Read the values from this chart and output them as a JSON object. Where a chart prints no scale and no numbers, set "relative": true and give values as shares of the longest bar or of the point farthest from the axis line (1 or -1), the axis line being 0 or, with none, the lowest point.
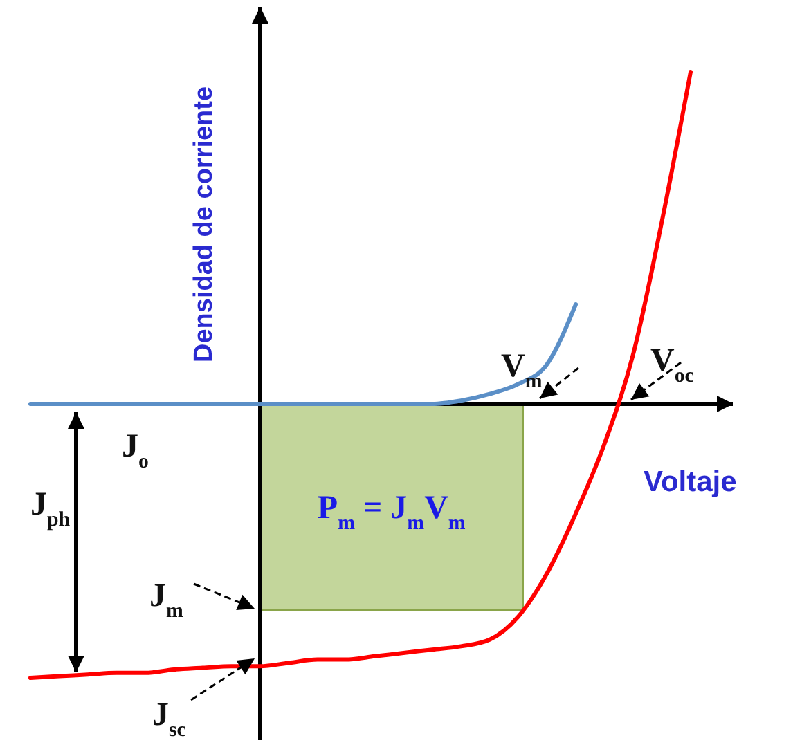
{
  "chart_data": {
    "type": "line",
    "relative": true,
    "xlabel": "Voltaje",
    "ylabel": "Densidad de corriente",
    "categories": [
      null,
      null,
      null,
      null,
      null,
      null,
      null,
      null,
      null,
      null,
      null,
      null,
      null,
      null,
      null,
      null,
      null,
      null,
      null,
      null,
      null,
      null,
      null,
      null
    ],
    "series": [
      {
        "color": "#5b8fc7",
        "values": [
          0,
          0,
          0,
          0,
          0,
          0,
          0,
          0,
          0,
          0,
          0,
          0,
          0,
          0,
          0,
          0.01,
          0.03,
          0.06,
          0.12,
          0.3,
          null,
          null,
          null,
          null
        ]
      },
      {
        "color": "#ff0000",
        "values": [
          -0.825,
          -0.82,
          -0.815,
          -0.81,
          -0.81,
          -0.8,
          -0.795,
          -0.79,
          -0.79,
          -0.78,
          -0.77,
          -0.77,
          -0.76,
          -0.75,
          -0.74,
          -0.73,
          -0.71,
          -0.64,
          -0.51,
          -0.33,
          -0.12,
          0.15,
          0.55,
          1.0
        ]
      }
    ],
    "bands": [
      {
        "axis": "y",
        "from": -0.62,
        "to": 0,
        "label": "P$_{m}$ = J$_{m}$V$_{m}$",
        "color": "#c3d69b"
      }
    ],
    "annotations": [
      "J$_{o}$",
      "J$_{ph}$",
      "J$_{m}$",
      "J$_{sc}$",
      "V$_{m}$",
      "V$_{oc}$"
    ]
  }
}
